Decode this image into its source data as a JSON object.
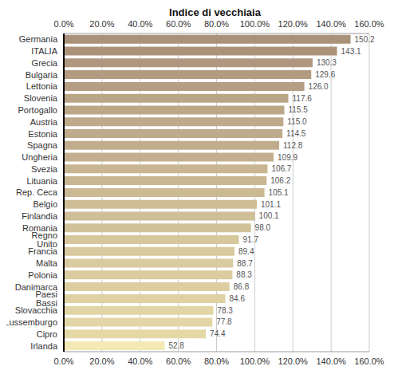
{
  "chart_data": {
    "type": "bar",
    "title": "Indice di vecchiaia",
    "orientation": "horizontal",
    "categories": [
      "Germania",
      "ITALIA",
      "Grecia",
      "Bulgaria",
      "Lettonia",
      "Slovenia",
      "Portogallo",
      "Austria",
      "Estonia",
      "Spagna",
      "Ungheria",
      "Svezia",
      "Lituania",
      "Rep. Ceca",
      "Belgio",
      "Finlandia",
      "Romania",
      "Regno Unito",
      "Francia",
      "Malta",
      "Polonia",
      "Danimarca",
      "Paesi Bassi",
      "Slovacchia",
      "Lussemburgo",
      "Cipro",
      "Irlanda"
    ],
    "values": [
      150.2,
      143.1,
      130.3,
      129.6,
      126.0,
      117.6,
      115.5,
      115.0,
      114.5,
      112.8,
      109.9,
      106.7,
      106.2,
      105.1,
      101.1,
      100.1,
      98.0,
      91.7,
      89.4,
      88.7,
      88.3,
      86.8,
      84.6,
      78.3,
      77.8,
      74.4,
      52.8
    ],
    "value_labels": [
      "150.2",
      "143.1",
      "130.3",
      "129.6",
      "126.0",
      "117.6",
      "115.5",
      "115.0",
      "114.5",
      "112.8",
      "109.9",
      "106.7",
      "106.2",
      "105.1",
      "101.1",
      "100.1",
      "98.0",
      "91.7",
      "89.4",
      "88.7",
      "88.3",
      "86.8",
      "84.6",
      "78.3",
      "77.8",
      "74.4",
      "52.8"
    ],
    "data_labels": true,
    "colors": [
      "#aa9179",
      "#ab937a",
      "#b09880",
      "#b39b82",
      "#b59e84",
      "#bba587",
      "#bca789",
      "#bea98b",
      "#bfaa8c",
      "#c1ad8e",
      "#c3af90",
      "#c8b692",
      "#c9b793",
      "#cbb994",
      "#cebd96",
      "#cfbe97",
      "#d1c198",
      "#d6c79c",
      "#d8c99e",
      "#d9ca9f",
      "#dacca0",
      "#dccea1",
      "#dfd1a3",
      "#e2d5a5",
      "#e3d6a6",
      "#e5d8a7",
      "#f2e9b4"
    ],
    "xlim": [
      0,
      160
    ],
    "xticks": [
      {
        "value": 0,
        "label": "0.0%"
      },
      {
        "value": 20,
        "label": "20.0%"
      },
      {
        "value": 40,
        "label": "40.0%"
      },
      {
        "value": 60,
        "label": "60.0%"
      },
      {
        "value": 80,
        "label": "80.0%"
      },
      {
        "value": 100,
        "label": "100.0%"
      },
      {
        "value": 120,
        "label": "120.0%"
      },
      {
        "value": 140,
        "label": "140.0%"
      },
      {
        "value": 160,
        "label": "160.0%"
      }
    ],
    "grid": true
  }
}
